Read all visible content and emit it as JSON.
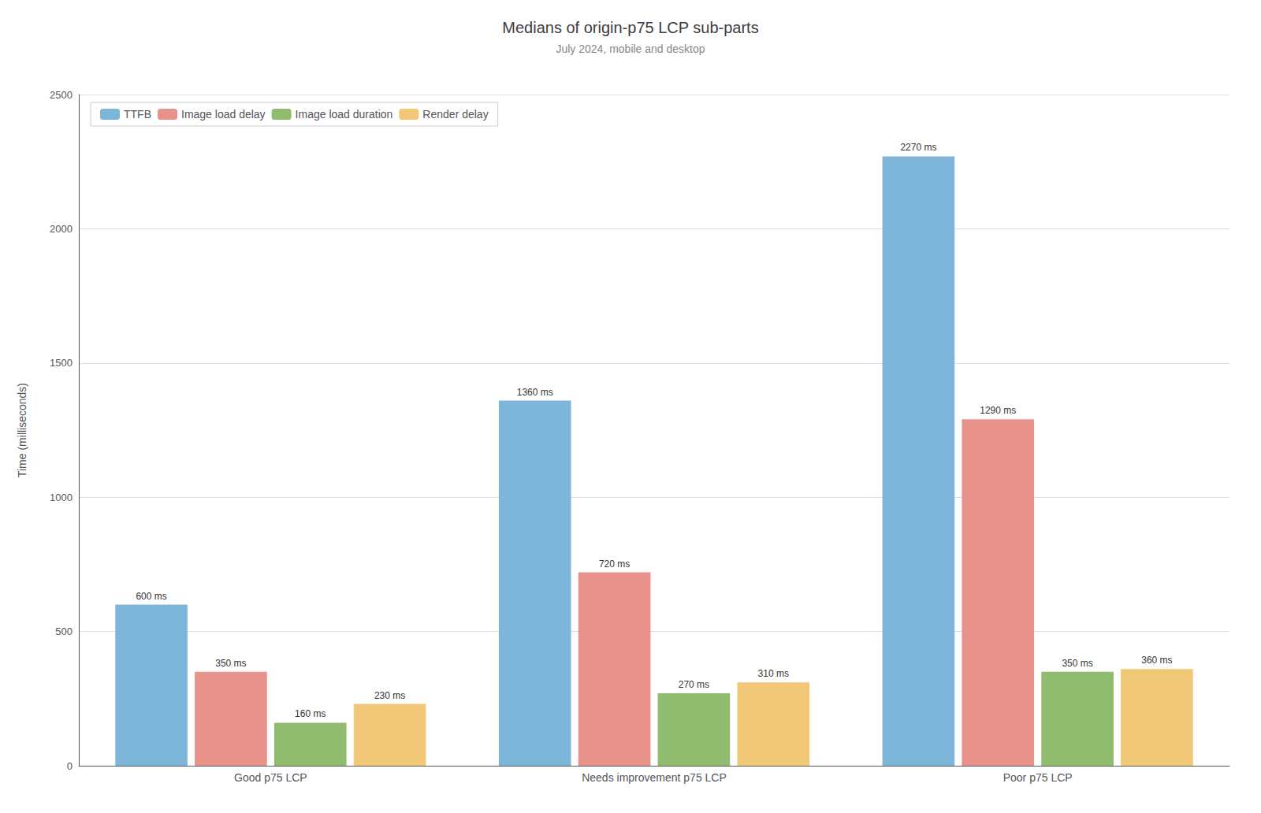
{
  "chart_data": {
    "type": "bar",
    "title": "Medians of origin-p75 LCP sub-parts",
    "subtitle": "July 2024, mobile and desktop",
    "categories": [
      "Good p75 LCP",
      "Needs improvement p75 LCP",
      "Poor p75 LCP"
    ],
    "series": [
      {
        "name": "TTFB",
        "color": "#7eb6d9",
        "values": [
          600,
          1360,
          2270
        ],
        "value_labels": [
          "600 ms",
          "1360 ms",
          "2270 ms"
        ]
      },
      {
        "name": "Image load delay",
        "color": "#e8928c",
        "values": [
          350,
          720,
          1290
        ],
        "value_labels": [
          "350 ms",
          "720 ms",
          "1290 ms"
        ]
      },
      {
        "name": "Image load duration",
        "color": "#8fbc6e",
        "values": [
          160,
          270,
          350
        ],
        "value_labels": [
          "160 ms",
          "270 ms",
          "350 ms"
        ]
      },
      {
        "name": "Render delay",
        "color": "#f0c878",
        "values": [
          230,
          310,
          360
        ],
        "value_labels": [
          "230 ms",
          "310 ms",
          "360 ms"
        ]
      }
    ],
    "ylabel": "Time (milliseconds)",
    "ylim": [
      0,
      2500
    ],
    "yticks": [
      0,
      500,
      1000,
      1500,
      2000,
      2500
    ],
    "grid": true,
    "legend": "upper left",
    "data_labels": true
  }
}
